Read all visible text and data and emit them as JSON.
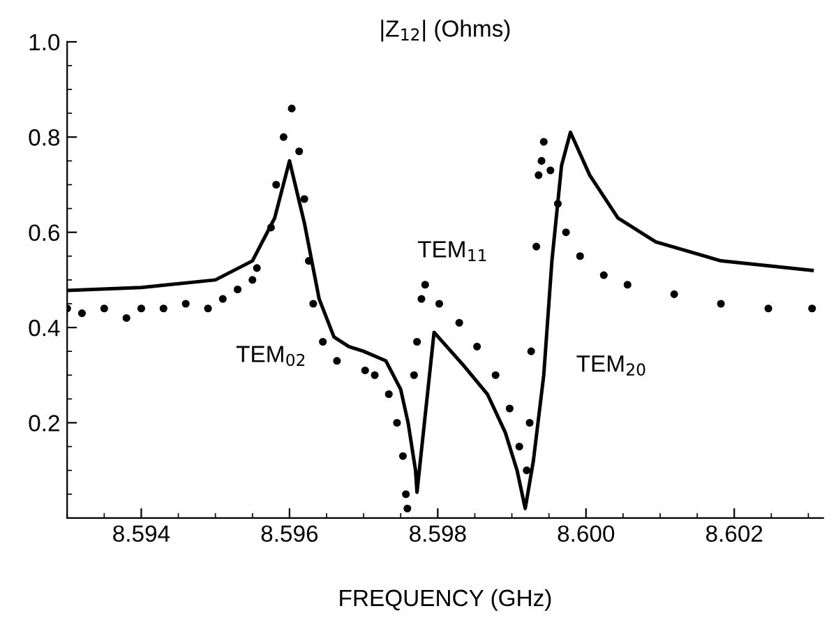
{
  "chart_data": {
    "type": "line",
    "title": "|Z$_{12}$| (Ohms)",
    "xlabel": "FREQUENCY (GHz)",
    "xlim": [
      8.593,
      8.6032
    ],
    "ylim": [
      0,
      1.0
    ],
    "xticks": [
      8.594,
      8.596,
      8.598,
      {
        "value": 8.6,
        "label": "8.600"
      },
      8.602
    ],
    "yticks": [
      0.2,
      0.4,
      0.6,
      0.8,
      {
        "value": 1.0,
        "label": "1.0"
      }
    ],
    "grid": false,
    "legend": false,
    "annotations": [
      "TEM$_{02}$",
      "TEM$_{11}$",
      "TEM$_{20}$"
    ],
    "series": [
      {
        "type": "scatter",
        "color": "#000000",
        "marker": "circle",
        "x": [
          8.593,
          8.5932,
          8.5935,
          8.5938,
          8.594,
          8.5943,
          8.5946,
          8.5949,
          8.5951,
          8.5953,
          8.5955,
          8.59556,
          8.59575,
          8.59582,
          8.59592,
          8.59603,
          8.59613,
          8.5962,
          8.59626,
          8.59632,
          8.59645,
          8.59664,
          8.59702,
          8.59715,
          8.59734,
          8.59745,
          8.59753,
          8.59757,
          8.59759,
          8.59768,
          8.59772,
          8.59778,
          8.59783,
          8.59802,
          8.59829,
          8.59853,
          8.59878,
          8.59897,
          8.5991,
          8.5992,
          8.59924,
          8.59926,
          8.59933,
          8.59936,
          8.5994,
          8.59943,
          8.59952,
          8.59962,
          8.59973,
          8.59992,
          8.60024,
          8.60056,
          8.60119,
          8.60182,
          8.60246,
          8.60305
        ],
        "values": [
          0.44,
          0.43,
          0.44,
          0.42,
          0.44,
          0.44,
          0.45,
          0.44,
          0.46,
          0.48,
          0.5,
          0.525,
          0.61,
          0.7,
          0.8,
          0.86,
          0.77,
          0.67,
          0.54,
          0.45,
          0.37,
          0.33,
          0.31,
          0.3,
          0.26,
          0.2,
          0.13,
          0.05,
          0.02,
          0.3,
          0.37,
          0.46,
          0.49,
          0.45,
          0.41,
          0.36,
          0.3,
          0.23,
          0.15,
          0.1,
          0.2,
          0.35,
          0.57,
          0.72,
          0.75,
          0.79,
          0.73,
          0.66,
          0.6,
          0.55,
          0.51,
          0.49,
          0.47,
          0.45,
          0.44,
          0.44
        ]
      },
      {
        "color": "#000000",
        "line_style": "solid",
        "x": [
          8.593,
          8.594,
          8.595,
          8.5955,
          8.5958,
          8.596,
          8.5962,
          8.5964,
          8.5966,
          8.5968,
          8.597,
          8.5973,
          8.5975,
          8.5976,
          8.5977,
          8.59772,
          8.59795,
          8.59835,
          8.59867,
          8.59891,
          8.59907,
          8.59918,
          8.59929,
          8.59943,
          8.59954,
          8.59967,
          8.59979,
          8.60005,
          8.60043,
          8.60094,
          8.60182,
          8.60305
        ],
        "values": [
          0.478,
          0.484,
          0.5,
          0.54,
          0.63,
          0.75,
          0.62,
          0.46,
          0.38,
          0.36,
          0.35,
          0.33,
          0.27,
          0.2,
          0.1,
          0.054,
          0.39,
          0.32,
          0.26,
          0.18,
          0.1,
          0.02,
          0.12,
          0.3,
          0.54,
          0.74,
          0.81,
          0.72,
          0.63,
          0.58,
          0.54,
          0.52
        ]
      }
    ]
  }
}
